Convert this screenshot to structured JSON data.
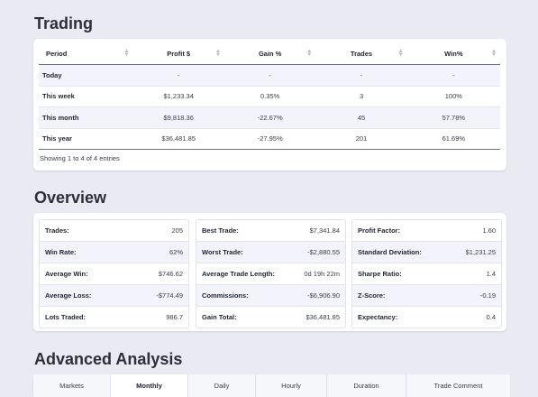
{
  "trading": {
    "title": "Trading",
    "columns": [
      "Period",
      "Profit $",
      "Gain %",
      "Trades",
      "Win%"
    ],
    "rows": [
      {
        "period": "Today",
        "profit": "-",
        "gain": "-",
        "trades": "-",
        "win": "-"
      },
      {
        "period": "This week",
        "profit": "$1,233.34",
        "gain": "0.35%",
        "trades": "3",
        "win": "100%"
      },
      {
        "period": "This month",
        "profit": "$9,818.36",
        "gain": "-22.67%",
        "trades": "45",
        "win": "57.78%"
      },
      {
        "period": "This year",
        "profit": "$36,481.85",
        "gain": "-27.95%",
        "trades": "201",
        "win": "61.69%"
      }
    ],
    "info": "Showing 1 to 4 of 4 entries"
  },
  "overview": {
    "title": "Overview",
    "col1": [
      {
        "label": "Trades:",
        "value": "205"
      },
      {
        "label": "Win Rate:",
        "value": "62%"
      },
      {
        "label": "Average Win:",
        "value": "$746.62"
      },
      {
        "label": "Average Loss:",
        "value": "-$774.49"
      },
      {
        "label": "Lots Traded:",
        "value": "986.7"
      }
    ],
    "col2": [
      {
        "label": "Best Trade:",
        "value": "$7,341.84"
      },
      {
        "label": "Worst Trade:",
        "value": "-$2,880.55"
      },
      {
        "label": "Average Trade Length:",
        "value": "0d 19h 22m"
      },
      {
        "label": "Commissions:",
        "value": "-$6,906.90"
      },
      {
        "label": "Gain Total:",
        "value": "$36,481.85"
      }
    ],
    "col3": [
      {
        "label": "Profit Factor:",
        "value": "1.60"
      },
      {
        "label": "Standard Deviation:",
        "value": "$1,231.25"
      },
      {
        "label": "Sharpe Ratio:",
        "value": "1.4"
      },
      {
        "label": "Z-Score:",
        "value": "-0.19"
      },
      {
        "label": "Expectancy:",
        "value": "0.4"
      }
    ]
  },
  "advanced": {
    "title": "Advanced Analysis",
    "tabs": [
      "Markets",
      "Monthly",
      "Daily",
      "Hourly",
      "Duration",
      "Trade Comment"
    ],
    "active_tab": "Monthly"
  }
}
